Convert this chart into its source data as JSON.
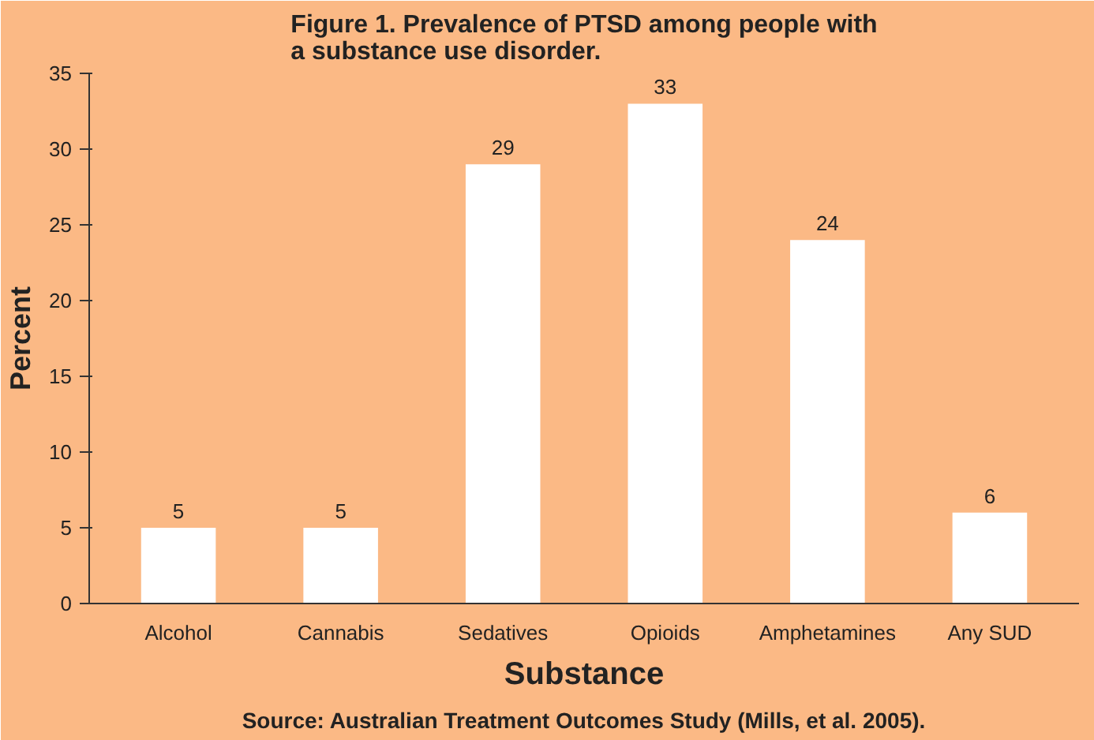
{
  "chart_data": {
    "type": "bar",
    "title": "Figure 1. Prevalence of PTSD among people with a substance use disorder.",
    "xlabel": "Substance",
    "ylabel": "Percent",
    "categories": [
      "Alcohol",
      "Cannabis",
      "Sedatives",
      "Opioids",
      "Amphetamines",
      "Any SUD"
    ],
    "values": [
      5,
      5,
      29,
      33,
      24,
      6
    ],
    "color": "#ffffff",
    "ylim": [
      0,
      35
    ],
    "yticks": [
      0,
      5,
      10,
      15,
      20,
      25,
      30,
      35
    ],
    "grid": false,
    "data_labels": true,
    "annotations": [
      "Source: Australian Treatment Outcomes Study (Mills, et al. 2005)."
    ]
  }
}
